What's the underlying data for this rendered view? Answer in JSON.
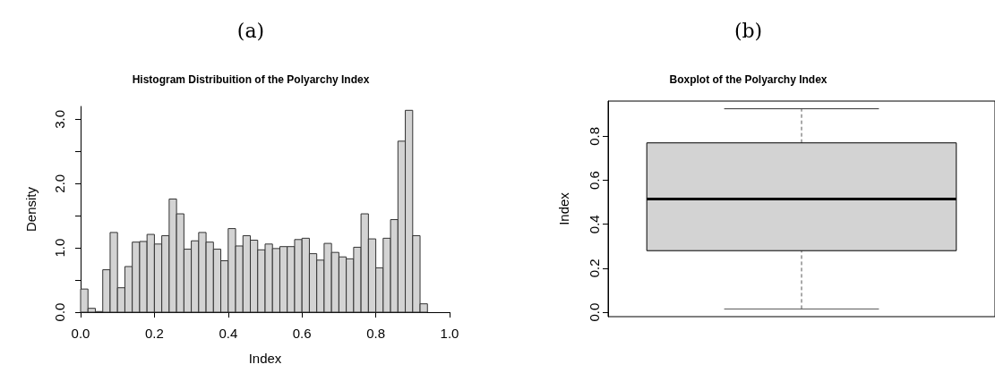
{
  "chart_data": [
    {
      "type": "histogram",
      "annotations": [
        "(a)"
      ],
      "title": "Histogram Distribuition of the Polyarchy Index",
      "xlabel": "Index",
      "ylabel": "Density",
      "color": "#d3d3d3",
      "bins": [
        0,
        0.02,
        0.04,
        0.06,
        0.08,
        0.1,
        0.12,
        0.14,
        0.16,
        0.18,
        0.2,
        0.22,
        0.24,
        0.26,
        0.28,
        0.3,
        0.32,
        0.34,
        0.36,
        0.38,
        0.4,
        0.42,
        0.44,
        0.46,
        0.48,
        0.5,
        0.52,
        0.54,
        0.56,
        0.58,
        0.6,
        0.62,
        0.64,
        0.66,
        0.68,
        0.7,
        0.72,
        0.74,
        0.76,
        0.78,
        0.8,
        0.82,
        0.84,
        0.86,
        0.88,
        0.9,
        0.92,
        0.94
      ],
      "values": [
        0.36,
        0.06,
        0.01,
        0.66,
        1.24,
        0.38,
        0.71,
        1.09,
        1.1,
        1.21,
        1.06,
        1.19,
        1.76,
        1.53,
        0.98,
        1.11,
        1.24,
        1.09,
        0.98,
        0.8,
        1.3,
        1.03,
        1.19,
        1.12,
        0.97,
        1.06,
        0.99,
        1.02,
        1.02,
        1.13,
        1.15,
        0.91,
        0.81,
        1.07,
        0.93,
        0.86,
        0.83,
        1.01,
        1.53,
        1.14,
        0.69,
        1.15,
        1.44,
        2.66,
        3.14,
        1.19,
        0.13
      ],
      "xlim": [
        0,
        1
      ],
      "xticks": [
        {
          "value": 0,
          "label": "0.0"
        },
        0.2,
        0.4,
        0.6,
        0.8,
        {
          "value": 1,
          "label": "1.0"
        }
      ],
      "ylim": [
        0,
        3.2
      ],
      "yticks": [
        {
          "value": 0,
          "label": "0.0"
        },
        {
          "value": 0.5,
          "label": null
        },
        {
          "value": 1,
          "label": "1.0"
        },
        {
          "value": 1.5,
          "label": null
        },
        {
          "value": 2,
          "label": "2.0"
        },
        {
          "value": 2.5,
          "label": null
        },
        {
          "value": 3,
          "label": "3.0"
        }
      ],
      "grid": false
    },
    {
      "type": "box",
      "annotations": [
        "(b)"
      ],
      "title": "Boxplot of the Polyarchy Index",
      "ylabel": "Index",
      "color": "#d3d3d3",
      "categories": [
        null
      ],
      "boxes": [
        {
          "low": 0.015,
          "q1": 0.28,
          "median": 0.515,
          "q3": 0.77,
          "high": 0.925
        }
      ],
      "ylim": [
        -0.02,
        0.96
      ],
      "yticks": [
        {
          "value": 0,
          "label": "0.0"
        },
        0.2,
        0.4,
        0.6,
        0.8
      ],
      "tick_labels": "y",
      "grid": false
    }
  ]
}
